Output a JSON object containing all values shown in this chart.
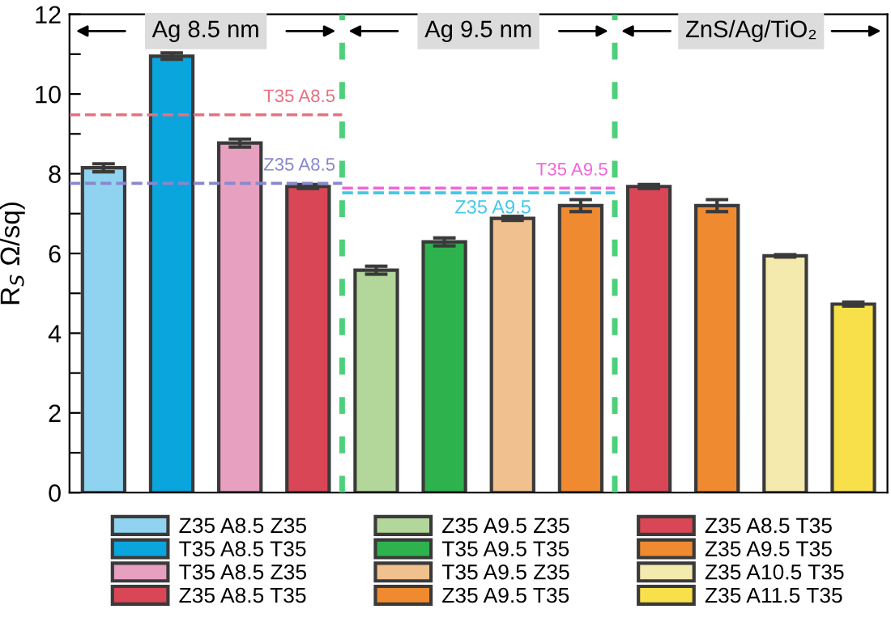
{
  "chart_data": {
    "type": "bar",
    "ylabel": "R$_{S}$ Ω/sq)",
    "annotations": [
      "Ag 8.5 nm",
      "Ag 9.5 nm",
      "ZnS/Ag/TiO₂",
      "Z35 A8.5 Z35",
      "T35 A8.5 T35",
      "T35 A8.5 Z35",
      "Z35 A8.5 T35",
      "Z35 A9.5 Z35",
      "T35 A9.5 T35",
      "T35 A9.5 Z35",
      "Z35 A9.5 T35",
      "Z35 A8.5 T35",
      "Z35 A9.5 T35",
      "Z35 A10.5 T35",
      "Z35 A11.5 T35"
    ],
    "categories": [
      null,
      null,
      null,
      null,
      null,
      null,
      null,
      null,
      null,
      null,
      null,
      null
    ],
    "ylim": [
      0,
      12
    ],
    "yticks": [
      0,
      {
        "value": 1,
        "label": null
      },
      2,
      {
        "value": 3,
        "label": null
      },
      4,
      {
        "value": 5,
        "label": null
      },
      6,
      {
        "value": 7,
        "label": null
      },
      8,
      {
        "value": 9,
        "label": null
      },
      10,
      {
        "value": 11,
        "label": null
      },
      12
    ],
    "tick_labels": "y",
    "grid": false,
    "values": [
      8.15,
      10.95,
      8.77,
      7.68,
      5.58,
      6.29,
      6.88,
      7.2,
      7.68,
      7.2,
      5.94,
      4.73
    ],
    "errors": [
      0.1,
      0.08,
      0.1,
      0.05,
      0.1,
      0.1,
      0.05,
      0.15,
      0.05,
      0.15,
      0.03,
      0.05
    ],
    "colors": [
      "#8fd3f0",
      "#0aa5dc",
      "#e8a0c0",
      "#d94656",
      "#b3d69b",
      "#2db24e",
      "#f0c08e",
      "#f08a30",
      "#d94656",
      "#f08a30",
      "#f5eaae",
      "#f8e04a"
    ],
    "ref_lines": [
      {
        "axis": "y",
        "value": 9.48,
        "label": "T35 A8.5",
        "color": "#e87080",
        "line_style": "dashed"
      },
      {
        "axis": "y",
        "value": 7.76,
        "label": "Z35 A8.5",
        "color": "#8888cc",
        "line_style": "dashed"
      },
      {
        "axis": "y",
        "value": 7.64,
        "label": "T35 A9.5",
        "color": "#ee66dd",
        "line_style": "dashed"
      },
      {
        "axis": "y",
        "value": 7.52,
        "label": "Z35 A9.5",
        "color": "#44c8e8",
        "line_style": "dashed"
      }
    ]
  }
}
